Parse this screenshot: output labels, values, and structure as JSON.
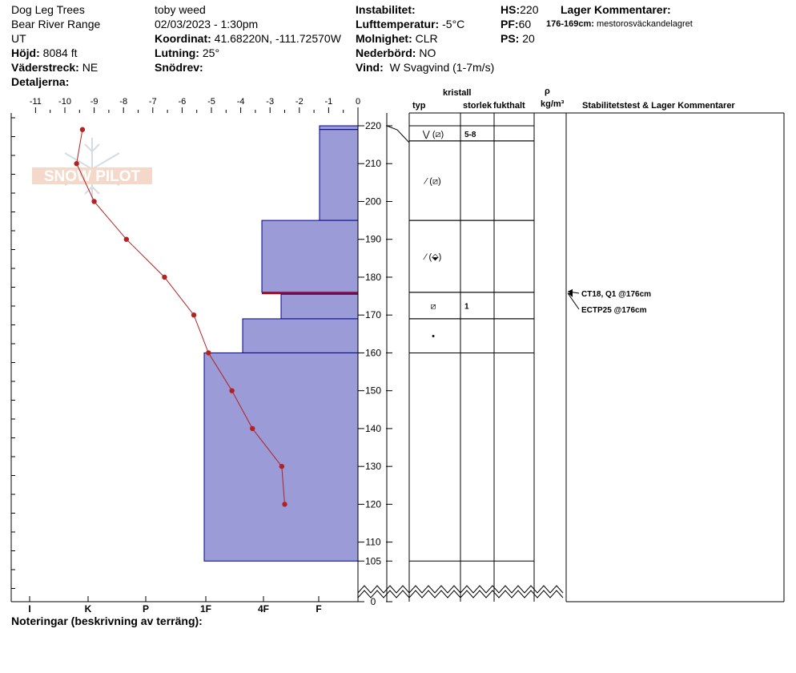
{
  "header": {
    "location": "Dog Leg Trees",
    "range": "Bear River Range",
    "state": "UT",
    "elevation_label": "Höjd:",
    "elevation_value": "8084 ft",
    "aspect_label": "Väderstreck:",
    "aspect_value": "NE",
    "details_label": "Detaljerna:",
    "observer": "toby weed",
    "datetime": "02/03/2023 - 1:30pm",
    "coord_label": "Koordinat:",
    "coord_value": "41.68220N, -111.72570W",
    "slope_label": "Lutning:",
    "slope_value": "25°",
    "drift_label": "Snödrev:",
    "drift_value": "",
    "instability_label": "Instabilitet:",
    "instability_value": "",
    "airtemp_label": "Lufttemperatur:",
    "airtemp_value": "-5°C",
    "sky_label": "Molnighet:",
    "sky_value": "CLR",
    "precip_label": "Nederbörd:",
    "precip_value": "NO",
    "wind_label": "Vind:",
    "wind_value": "W Svagvind (1-7m/s)",
    "hs_label": "HS:",
    "hs_value": "220",
    "pf_label": "PF:",
    "pf_value": "60",
    "ps_label": "PS:",
    "ps_value": "20",
    "layer_comments_title": "Lager Kommentarer:",
    "layer_comment_range": "176-169cm:",
    "layer_comment_text": "mestorosväckandelagret"
  },
  "columns": {
    "crystal": "kristall",
    "type": "typ",
    "size": "storlek",
    "moisture": "fukthalt",
    "rho": "ρ",
    "density_unit": "kg/m³",
    "stability": "Stabilitetstest & Lager Kommentarer"
  },
  "footer": {
    "notes_label": "Noteringar (beskrivning av terräng):"
  },
  "watermark": {
    "text": "SNOW PILOT"
  },
  "chart_data": {
    "type": "line",
    "title": "",
    "x_axis_top": {
      "label": "",
      "ticks": [
        "-11",
        "-10",
        "-9",
        "-8",
        "-7",
        "-6",
        "-5",
        "-4",
        "-3",
        "-2",
        "-1",
        "0"
      ],
      "range": [
        -11,
        0
      ]
    },
    "x_axis_bottom": {
      "label": "",
      "ticks": [
        "I",
        "K",
        "P",
        "1F",
        "4F",
        "F"
      ]
    },
    "y_axis": {
      "ticks": [
        220,
        210,
        200,
        190,
        180,
        170,
        160,
        150,
        140,
        130,
        120,
        110,
        105,
        0
      ],
      "range": [
        105,
        222
      ],
      "break": true
    },
    "temperature_profile": [
      {
        "depth": 219,
        "temp": -9.4
      },
      {
        "depth": 210,
        "temp": -9.6
      },
      {
        "depth": 200,
        "temp": -9.0
      },
      {
        "depth": 190,
        "temp": -7.9
      },
      {
        "depth": 180,
        "temp": -6.6
      },
      {
        "depth": 170,
        "temp": -5.6
      },
      {
        "depth": 160,
        "temp": -5.1
      },
      {
        "depth": 150,
        "temp": -4.3
      },
      {
        "depth": 140,
        "temp": -3.6
      },
      {
        "depth": 130,
        "temp": -2.6
      },
      {
        "depth": 120,
        "temp": -2.5
      }
    ],
    "hardness_layers": [
      {
        "top": 220,
        "bottom": 219,
        "hardness": "F"
      },
      {
        "top": 219,
        "bottom": 195,
        "hardness": "F+"
      },
      {
        "top": 195,
        "bottom": 176,
        "hardness": "4F+"
      },
      {
        "top": 176,
        "bottom": 175.5,
        "hardness": "4F+",
        "critical": true
      },
      {
        "top": 175.5,
        "bottom": 169,
        "hardness": "4F"
      },
      {
        "top": 169,
        "bottom": 160,
        "hardness": "4F-"
      },
      {
        "top": 160,
        "bottom": 105,
        "hardness": "1F"
      }
    ],
    "layer_table": [
      {
        "top": 220,
        "bottom": 216,
        "grain": "⋁ (⧄)",
        "size": "5-8"
      },
      {
        "top": 216,
        "bottom": 195,
        "grain": "⁄ (⧄)",
        "size": ""
      },
      {
        "top": 195,
        "bottom": 176,
        "grain": "⁄ (⬙)",
        "size": ""
      },
      {
        "top": 176,
        "bottom": 169,
        "grain": "⧄",
        "size": "1"
      },
      {
        "top": 169,
        "bottom": 160,
        "grain": "•",
        "size": ""
      },
      {
        "top": 160,
        "bottom": 105,
        "grain": "",
        "size": ""
      }
    ],
    "stability_tests": [
      {
        "text": "CT18, Q1 @176cm",
        "depth": 176
      },
      {
        "text": "ECTP25 @176cm",
        "depth": 176
      }
    ],
    "colors": {
      "hardness_fill": "#9b9bd7",
      "hardness_stroke": "#00008b",
      "profile": "#b22222",
      "critical": "#c00000"
    }
  }
}
